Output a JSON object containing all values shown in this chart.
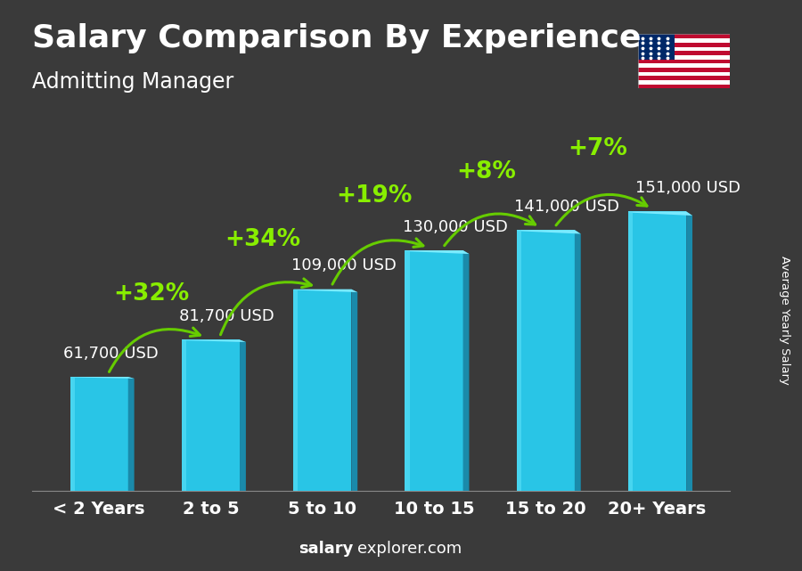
{
  "title": "Salary Comparison By Experience",
  "subtitle": "Admitting Manager",
  "categories": [
    "< 2 Years",
    "2 to 5",
    "5 to 10",
    "10 to 15",
    "15 to 20",
    "20+ Years"
  ],
  "values": [
    61700,
    81700,
    109000,
    130000,
    141000,
    151000
  ],
  "labels": [
    "61,700 USD",
    "81,700 USD",
    "109,000 USD",
    "130,000 USD",
    "141,000 USD",
    "151,000 USD"
  ],
  "pct_changes": [
    "+32%",
    "+34%",
    "+19%",
    "+8%",
    "+7%"
  ],
  "bar_color_front": "#29c5e6",
  "bar_color_side": "#1a8aaa",
  "bar_color_highlight": "#55ddf5",
  "bar_color_top": "#7aeaff",
  "bg_overlay": "#1c1c1c",
  "text_white": "#ffffff",
  "text_green": "#88ee00",
  "arrow_green": "#66cc00",
  "ylabel": "Average Yearly Salary",
  "footer_bold": "salary",
  "footer_regular": "explorer.com",
  "ylim": [
    0,
    185000
  ],
  "title_fontsize": 26,
  "subtitle_fontsize": 17,
  "label_fontsize": 13,
  "pct_fontsize": 19,
  "cat_fontsize": 14,
  "footer_fontsize": 13
}
